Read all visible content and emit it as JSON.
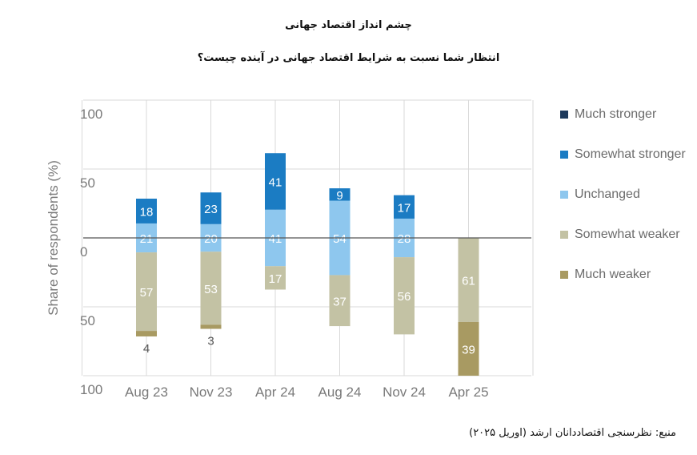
{
  "title_line1": "چشم انداز اقتصاد جهانی",
  "title_line2": "انتظار شما نسبت به شرایط اقتصاد جهانی در آینده چیست؟",
  "source": "منبع: نظرسنجی اقتصاددانان ارشد (اوریل ۲۰۲۵)",
  "legend": [
    {
      "name": "Much stronger",
      "color": "#1d3a5c"
    },
    {
      "name": "Somewhat stronger",
      "color": "#1b7cc3"
    },
    {
      "name": "Unchanged",
      "color": "#8ec7ee"
    },
    {
      "name": "Somewhat weaker",
      "color": "#c3c2a4"
    },
    {
      "name": "Much weaker",
      "color": "#a89a62"
    }
  ],
  "chart_data": {
    "type": "bar",
    "stacked": "diverging",
    "ylabel": "Share of respondents (%)",
    "ylim": [
      -100,
      100
    ],
    "ytick_values": [
      100,
      50,
      0,
      -50,
      -100
    ],
    "ytick_labels": [
      "100",
      "50",
      "0",
      "50",
      "100"
    ],
    "categories": [
      "Aug 23",
      "Nov 23",
      "Apr 24",
      "Aug 24",
      "Nov 24",
      "Apr 25"
    ],
    "series": [
      {
        "name": "Much stronger",
        "direction": "up",
        "values": [
          0,
          0,
          0,
          0,
          0,
          0
        ]
      },
      {
        "name": "Somewhat stronger",
        "direction": "up",
        "values": [
          18,
          23,
          41,
          9,
          17,
          0
        ]
      },
      {
        "name": "Unchanged",
        "direction": "center",
        "values": [
          21,
          20,
          41,
          54,
          28,
          0
        ]
      },
      {
        "name": "Somewhat weaker",
        "direction": "down",
        "values": [
          57,
          53,
          17,
          37,
          56,
          61
        ]
      },
      {
        "name": "Much weaker",
        "direction": "down",
        "values": [
          4,
          3,
          0,
          0,
          0,
          39
        ]
      }
    ]
  }
}
